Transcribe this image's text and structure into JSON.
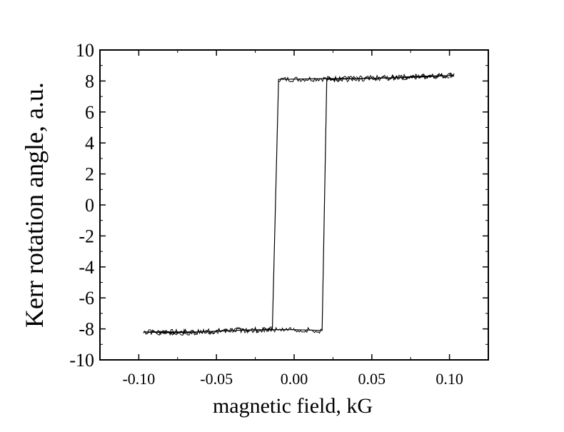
{
  "chart_data": {
    "type": "line",
    "title": "",
    "xlabel": "magnetic field, kG",
    "ylabel": "Kerr rotation angle, a.u.",
    "xlim": [
      -0.125,
      0.125
    ],
    "ylim": [
      -10,
      10
    ],
    "xticks": [
      -0.1,
      -0.05,
      0.0,
      0.05,
      0.1
    ],
    "xtick_labels": [
      "-0.10",
      "-0.05",
      "0.00",
      "0.05",
      "0.10"
    ],
    "yticks": [
      10,
      8,
      6,
      4,
      2,
      0,
      -2,
      -4,
      -6,
      -8,
      -10
    ],
    "ytick_labels": [
      "10",
      "8",
      "6",
      "4",
      "2",
      "0",
      "-2",
      "-4",
      "-6",
      "-8",
      "-10"
    ],
    "grid": false,
    "series": [
      {
        "x": [
          -0.097,
          -0.08,
          -0.06,
          -0.04,
          -0.02,
          -0.014,
          -0.01,
          0.02,
          0.04,
          0.06,
          0.08,
          0.1,
          0.103,
          0.1,
          0.08,
          0.06,
          0.04,
          0.021,
          0.018,
          0.0,
          -0.02,
          -0.04,
          -0.06,
          -0.08,
          -0.097
        ],
        "y": [
          -8.2,
          -8.2,
          -8.2,
          -8.1,
          -8.05,
          -8.0,
          8.1,
          8.15,
          8.15,
          8.2,
          8.3,
          8.35,
          8.4,
          8.35,
          8.25,
          8.2,
          8.15,
          8.1,
          -8.1,
          -8.05,
          -8.05,
          -8.1,
          -8.2,
          -8.25,
          -8.2
        ],
        "color": "#000000"
      }
    ]
  }
}
